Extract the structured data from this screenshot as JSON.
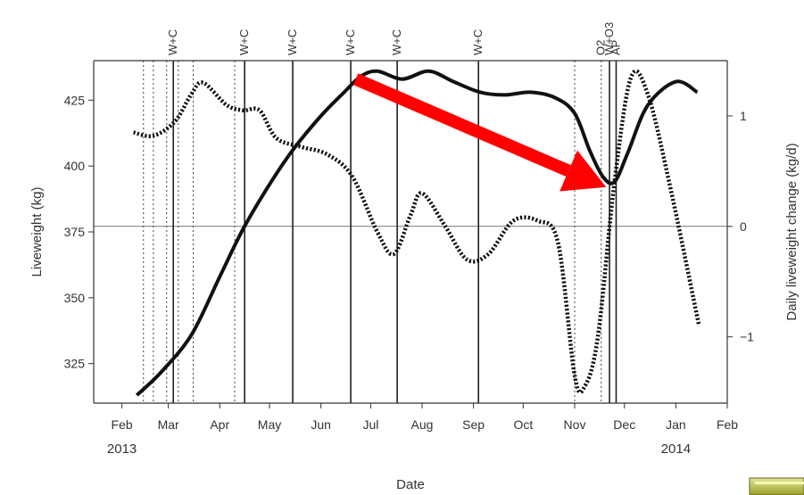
{
  "chart_data": {
    "type": "line",
    "xlabel": "Date",
    "ylabel": "Liveweight (kg)",
    "y2label": "Daily liveweight change (kg/d)",
    "x_ticks": [
      "Feb",
      "Mar",
      "Apr",
      "May",
      "Jun",
      "Jul",
      "Aug",
      "Sep",
      "Oct",
      "Nov",
      "Dec",
      "Jan",
      "Feb"
    ],
    "x_tick_dates": [
      "2013-02-01",
      "2013-03-01",
      "2013-04-01",
      "2013-05-01",
      "2013-06-01",
      "2013-07-01",
      "2013-08-01",
      "2013-09-01",
      "2013-10-01",
      "2013-11-01",
      "2013-12-01",
      "2014-01-01",
      "2014-02-01"
    ],
    "year_labels": [
      {
        "label": "2013",
        "date": "2013-02-01"
      },
      {
        "label": "2014",
        "date": "2014-01-01"
      }
    ],
    "xlim": [
      "2013-01-15",
      "2014-02-01"
    ],
    "ylim": [
      310,
      440
    ],
    "y_ticks": [
      325,
      350,
      375,
      400,
      425
    ],
    "y2lim": [
      -1.6,
      1.5
    ],
    "y2_ticks": [
      -1,
      0,
      1
    ],
    "reference_line_y2": 0,
    "event_lines": [
      {
        "date": "2013-02-14",
        "label": "",
        "style": "dotted"
      },
      {
        "date": "2013-02-20",
        "label": "",
        "style": "dotted"
      },
      {
        "date": "2013-02-28",
        "label": "",
        "style": "dotted"
      },
      {
        "date": "2013-03-04",
        "label": "W+C",
        "style": "solid"
      },
      {
        "date": "2013-03-07",
        "label": "",
        "style": "dotted"
      },
      {
        "date": "2013-03-16",
        "label": "",
        "style": "dotted"
      },
      {
        "date": "2013-04-10",
        "label": "",
        "style": "dotted"
      },
      {
        "date": "2013-04-16",
        "label": "W+C",
        "style": "solid"
      },
      {
        "date": "2013-05-15",
        "label": "W+C",
        "style": "solid"
      },
      {
        "date": "2013-06-19",
        "label": "W+C",
        "style": "solid"
      },
      {
        "date": "2013-07-17",
        "label": "W+C",
        "style": "solid"
      },
      {
        "date": "2013-09-04",
        "label": "W+C",
        "style": "solid"
      },
      {
        "date": "2013-11-01",
        "label": "",
        "style": "dotted"
      },
      {
        "date": "2013-11-17",
        "label": "O2",
        "style": "dotted"
      },
      {
        "date": "2013-11-22",
        "label": "W+O3",
        "style": "solid"
      },
      {
        "date": "2013-11-26",
        "label": "AP",
        "style": "solid"
      }
    ],
    "series": [
      {
        "axis": "left",
        "style": "solid",
        "x": [
          "2013-02-10",
          "2013-02-25",
          "2013-03-15",
          "2013-04-01",
          "2013-04-15",
          "2013-05-01",
          "2013-05-15",
          "2013-06-01",
          "2013-06-15",
          "2013-06-25",
          "2013-07-05",
          "2013-07-20",
          "2013-08-05",
          "2013-08-20",
          "2013-09-05",
          "2013-09-20",
          "2013-10-05",
          "2013-10-20",
          "2013-11-01",
          "2013-11-10",
          "2013-11-18",
          "2013-11-25",
          "2013-12-03",
          "2013-12-15",
          "2014-01-01",
          "2014-01-14"
        ],
        "values": [
          313,
          322,
          336,
          358,
          376,
          393,
          406,
          419,
          428,
          434,
          436,
          433,
          436,
          432,
          428,
          427,
          428,
          426,
          420,
          406,
          396,
          394,
          405,
          423,
          432,
          428
        ]
      },
      {
        "axis": "right",
        "style": "dotted",
        "x": [
          "2013-02-08",
          "2013-02-20",
          "2013-03-05",
          "2013-03-15",
          "2013-03-22",
          "2013-04-05",
          "2013-04-15",
          "2013-04-25",
          "2013-05-05",
          "2013-05-20",
          "2013-06-05",
          "2013-06-20",
          "2013-07-05",
          "2013-07-15",
          "2013-07-25",
          "2013-08-01",
          "2013-08-15",
          "2013-08-28",
          "2013-09-10",
          "2013-09-25",
          "2013-10-10",
          "2013-10-22",
          "2013-11-01",
          "2013-11-07",
          "2013-11-15",
          "2013-11-25",
          "2013-12-05",
          "2013-12-15",
          "2013-12-28",
          "2014-01-15"
        ],
        "values": [
          0.85,
          0.82,
          0.95,
          1.2,
          1.3,
          1.1,
          1.05,
          1.05,
          0.8,
          0.72,
          0.65,
          0.45,
          -0.05,
          -0.25,
          0.1,
          0.3,
          0.0,
          -0.3,
          -0.25,
          0.05,
          0.05,
          -0.15,
          -1.35,
          -1.45,
          -1.0,
          0.4,
          1.35,
          1.2,
          0.4,
          -0.9
        ]
      }
    ],
    "annotations": [
      {
        "type": "arrow",
        "color": "#ff0000",
        "from": {
          "date": "2013-06-22",
          "y": 433
        },
        "to": {
          "date": "2013-11-20",
          "y": 392
        }
      }
    ]
  }
}
